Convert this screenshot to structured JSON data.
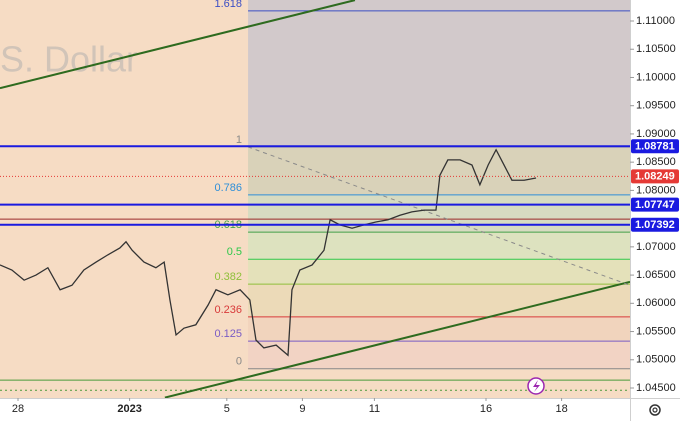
{
  "chart_data": {
    "type": "line",
    "watermark": ".S. Dollar",
    "color": "#333333",
    "x": [
      -0.5,
      -0.17,
      0.17,
      0.5,
      0.83,
      1.17,
      1.5,
      1.83,
      2.17,
      2.5,
      2.83,
      3.0,
      3.17,
      3.5,
      3.83,
      4.06,
      4.22,
      4.39,
      4.61,
      4.94,
      5.28,
      5.5,
      5.83,
      6.17,
      6.44,
      6.61,
      6.83,
      7.17,
      7.5,
      7.61,
      7.83,
      8.17,
      8.5,
      8.67,
      8.94,
      9.28,
      9.61,
      9.94,
      10.28,
      10.61,
      10.94,
      11.28,
      11.61,
      11.72,
      11.94,
      12.28,
      12.61,
      12.83,
      13.06,
      13.28,
      13.5,
      13.72,
      14.06,
      14.39
    ],
    "values": [
      1.0668,
      1.0659,
      1.0641,
      1.065,
      1.0663,
      1.0624,
      1.0632,
      1.0659,
      1.0673,
      1.0686,
      1.0698,
      1.0709,
      1.0694,
      1.0673,
      1.0663,
      1.0673,
      1.0606,
      1.0544,
      1.0556,
      1.0562,
      1.0597,
      1.0624,
      1.0615,
      1.0624,
      1.0606,
      1.0535,
      1.0521,
      1.0526,
      1.0508,
      1.0624,
      1.0659,
      1.0668,
      1.0694,
      1.0748,
      1.0739,
      1.0733,
      1.0739,
      1.0744,
      1.0748,
      1.0756,
      1.0762,
      1.0765,
      1.0765,
      1.0827,
      1.0854,
      1.0854,
      1.0845,
      1.081,
      1.0845,
      1.0872,
      1.0845,
      1.0818,
      1.0818,
      1.0822
    ],
    "xlim": [
      -0.5,
      17.0
    ],
    "ylim": [
      1.04323,
      1.11372
    ],
    "xticks": [
      {
        "value": 0,
        "label": "28"
      },
      {
        "value": 3.1,
        "label": "2023"
      },
      {
        "value": 5.8,
        "label": "5"
      },
      {
        "value": 7.9,
        "label": "9"
      },
      {
        "value": 9.9,
        "label": "11"
      },
      {
        "value": 13,
        "label": "16"
      },
      {
        "value": 15.1,
        "label": "18"
      }
    ],
    "yticks": [
      {
        "value": 1.11,
        "label": "1.11000"
      },
      {
        "value": 1.105,
        "label": "1.10500"
      },
      {
        "value": 1.1,
        "label": "1.10000"
      },
      {
        "value": 1.095,
        "label": "1.09500"
      },
      {
        "value": 1.09,
        "label": "1.09000"
      },
      {
        "value": 1.085,
        "label": "1.08500"
      },
      {
        "value": 1.08,
        "label": "1.08000"
      },
      {
        "value": 1.07,
        "label": "1.07000"
      },
      {
        "value": 1.065,
        "label": "1.06500"
      },
      {
        "value": 1.06,
        "label": "1.06000"
      },
      {
        "value": 1.055,
        "label": "1.05500"
      },
      {
        "value": 1.05,
        "label": "1.05000"
      },
      {
        "value": 1.045,
        "label": "1.04500"
      }
    ],
    "fib_start": 6.39,
    "fib_levels": [
      {
        "ratio": 1.618,
        "value": 1.1118,
        "color": "#3d4fc4",
        "band": "#d2c9cb"
      },
      {
        "ratio": 1,
        "value": 1.0877,
        "color": "#888888",
        "band": "#d9d2b9"
      },
      {
        "ratio": 0.786,
        "value": 1.0792,
        "color": "#2f8fd8",
        "band": "#d7dbc1"
      },
      {
        "ratio": 0.618,
        "value": 1.0726,
        "color": "#43a047",
        "band": "#dde2bf"
      },
      {
        "ratio": 0.5,
        "value": 1.0678,
        "color": "#2ec84a",
        "band": "#e4e1ba"
      },
      {
        "ratio": 0.382,
        "value": 1.0634,
        "color": "#8fbf3a",
        "band": "#ecdab8"
      },
      {
        "ratio": 0.236,
        "value": 1.0576,
        "color": "#d83a3a",
        "band": "#f1d4bd"
      },
      {
        "ratio": 0.125,
        "value": 1.0533,
        "color": "#7a5cc4",
        "band": "#f2d3c4"
      },
      {
        "ratio": 0,
        "value": 1.0484,
        "color": "#888888",
        "band": "#f6dcc4"
      }
    ],
    "trendlines": [
      {
        "x": [
          -0.5,
          9.36
        ],
        "values": [
          1.0981,
          1.1137
        ],
        "color": "#2e6b1f",
        "dash": false
      },
      {
        "x": [
          4.08,
          17.0
        ],
        "values": [
          1.0433,
          1.0638
        ],
        "color": "#2e6b1f",
        "dash": false
      },
      {
        "x": [
          6.39,
          17.0
        ],
        "values": [
          1.0877,
          1.0632
        ],
        "color": "#8a8a8a",
        "dash": true
      }
    ],
    "hlines": [
      {
        "value": 1.0749,
        "color": "#9b2a2a",
        "dash": false
      },
      {
        "value": 1.0464,
        "color": "#4a9a3a",
        "dash": false
      },
      {
        "value": 1.0446,
        "color": "#4a9a3a",
        "dash": true
      }
    ],
    "price_labels": [
      {
        "value": 1.08781,
        "label": "1.08781",
        "color": "#1a1ae0",
        "line": true
      },
      {
        "value": 1.08249,
        "label": "1.08249",
        "color": "#e53935",
        "line": false
      },
      {
        "value": 1.07747,
        "label": "1.07747",
        "color": "#1a1ae0",
        "line": true
      },
      {
        "value": 1.07392,
        "label": "1.07392",
        "color": "#1a1ae0",
        "line": true
      }
    ],
    "last_price": 1.08249
  }
}
